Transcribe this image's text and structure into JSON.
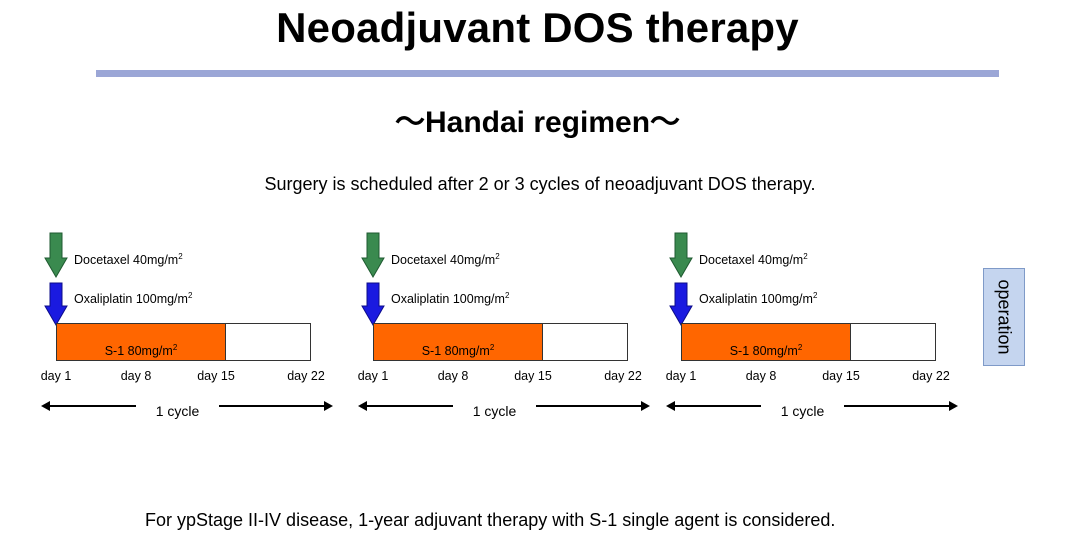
{
  "title": "Neoadjuvant DOS therapy",
  "subtitle": "～Handai regimen～",
  "schedule_note": "Surgery is scheduled after 2 or 3 cycles of neoadjuvant DOS therapy.",
  "drugs": {
    "docetaxel": {
      "name": "Docetaxel 40mg/m",
      "superscript": "2",
      "arrow_color": "#3a8a4f"
    },
    "oxaliplatin": {
      "name": "Oxaliplatin 100mg/m",
      "superscript": "2",
      "arrow_color": "#1a1ae0"
    },
    "s1": {
      "name": "S-1 80mg/m",
      "superscript": "2",
      "bar_color": "#ff6600"
    }
  },
  "days": [
    "day 1",
    "day 8",
    "day 15",
    "day 22"
  ],
  "cycle_label": "1 cycle",
  "operation_label": "operation",
  "footnote": "For ypStage II-IV disease, 1-year adjuvant therapy with S-1 single agent is considered."
}
